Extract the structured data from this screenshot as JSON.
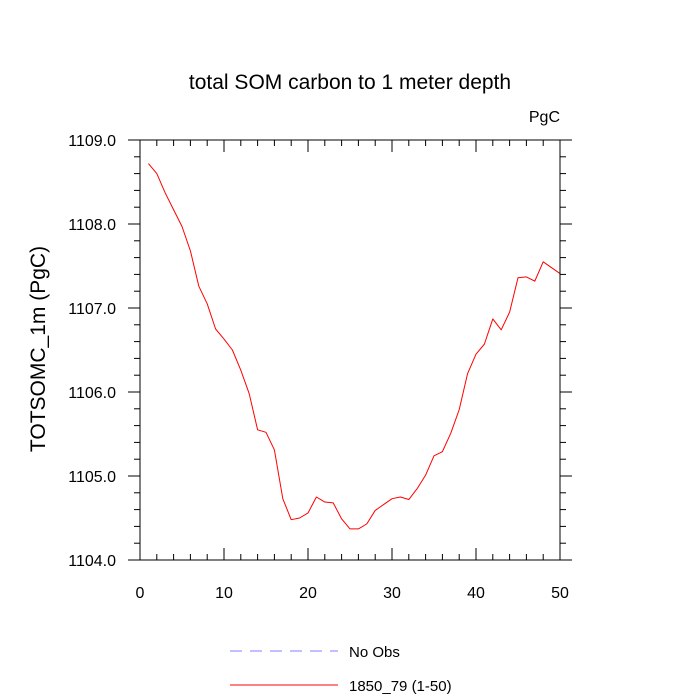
{
  "chart_data": {
    "type": "line",
    "title": "total SOM carbon to 1 meter depth",
    "units_label": "PgC",
    "xlabel": "",
    "ylabel": "TOTSOMC_1m  (PgC)",
    "xlim": [
      0,
      50
    ],
    "ylim": [
      1104.0,
      1109.0
    ],
    "x_major_ticks": [
      0,
      10,
      20,
      30,
      40,
      50
    ],
    "x_tick_labels": [
      "0",
      "10",
      "20",
      "30",
      "40",
      "50"
    ],
    "y_major_ticks": [
      1104.0,
      1105.0,
      1106.0,
      1107.0,
      1108.0,
      1109.0
    ],
    "y_tick_labels": [
      "1104.0",
      "1105.0",
      "1106.0",
      "1107.0",
      "1108.0",
      "1109.0"
    ],
    "grid": false,
    "legend_position": "bottom-center",
    "series": [
      {
        "name": "No Obs",
        "color": "#8080ff",
        "dashed": true,
        "x": [],
        "values": []
      },
      {
        "name": "1850_79 (1-50)",
        "color": "#ff0000",
        "dashed": false,
        "x": [
          1,
          2,
          3,
          4,
          5,
          6,
          7,
          8,
          9,
          10,
          11,
          12,
          13,
          14,
          15,
          16,
          17,
          18,
          19,
          20,
          21,
          22,
          23,
          24,
          25,
          26,
          27,
          28,
          29,
          30,
          31,
          32,
          33,
          34,
          35,
          36,
          37,
          38,
          39,
          40,
          41,
          42,
          43,
          44,
          45,
          46,
          47,
          48,
          49,
          50
        ],
        "values": [
          1108.72,
          1108.6,
          1108.37,
          1108.17,
          1107.97,
          1107.68,
          1107.26,
          1107.05,
          1106.75,
          1106.63,
          1106.5,
          1106.26,
          1105.98,
          1105.55,
          1105.52,
          1105.31,
          1104.73,
          1104.48,
          1104.5,
          1104.56,
          1104.75,
          1104.69,
          1104.68,
          1104.49,
          1104.37,
          1104.37,
          1104.43,
          1104.59,
          1104.66,
          1104.73,
          1104.75,
          1104.72,
          1104.85,
          1105.01,
          1105.24,
          1105.29,
          1105.51,
          1105.79,
          1106.22,
          1106.45,
          1106.57,
          1106.87,
          1106.74,
          1106.95,
          1107.36,
          1107.37,
          1107.32,
          1107.55,
          1107.48,
          1107.41
        ]
      }
    ]
  }
}
